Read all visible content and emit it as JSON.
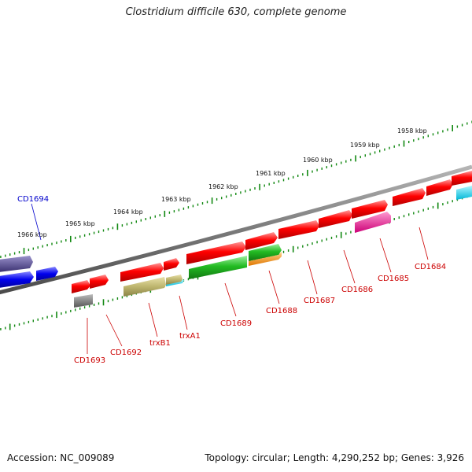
{
  "title": "Clostridium difficile 630, complete genome",
  "footer": {
    "accession": "Accession: NC_009089",
    "info": "Topology: circular; Length: 4,290,252 bp; Genes: 3,926"
  },
  "scale_labels": [
    "1966 kbp",
    "1965 kbp",
    "1964 kbp",
    "1963 kbp",
    "1962 kbp",
    "1961 kbp",
    "1960 kbp",
    "1959 kbp",
    "1958 kbp"
  ],
  "gene_labels": [
    "CD1694",
    "CD1693",
    "CD1692",
    "trxB1",
    "trxA1",
    "CD1689",
    "CD1688",
    "CD1687",
    "CD1686",
    "CD1685",
    "CD1684"
  ],
  "colors": {
    "label_red": "#cc0000",
    "label_blue": "#0000cc",
    "tick_green": "#118811",
    "backbone": "#7a7a7a"
  }
}
